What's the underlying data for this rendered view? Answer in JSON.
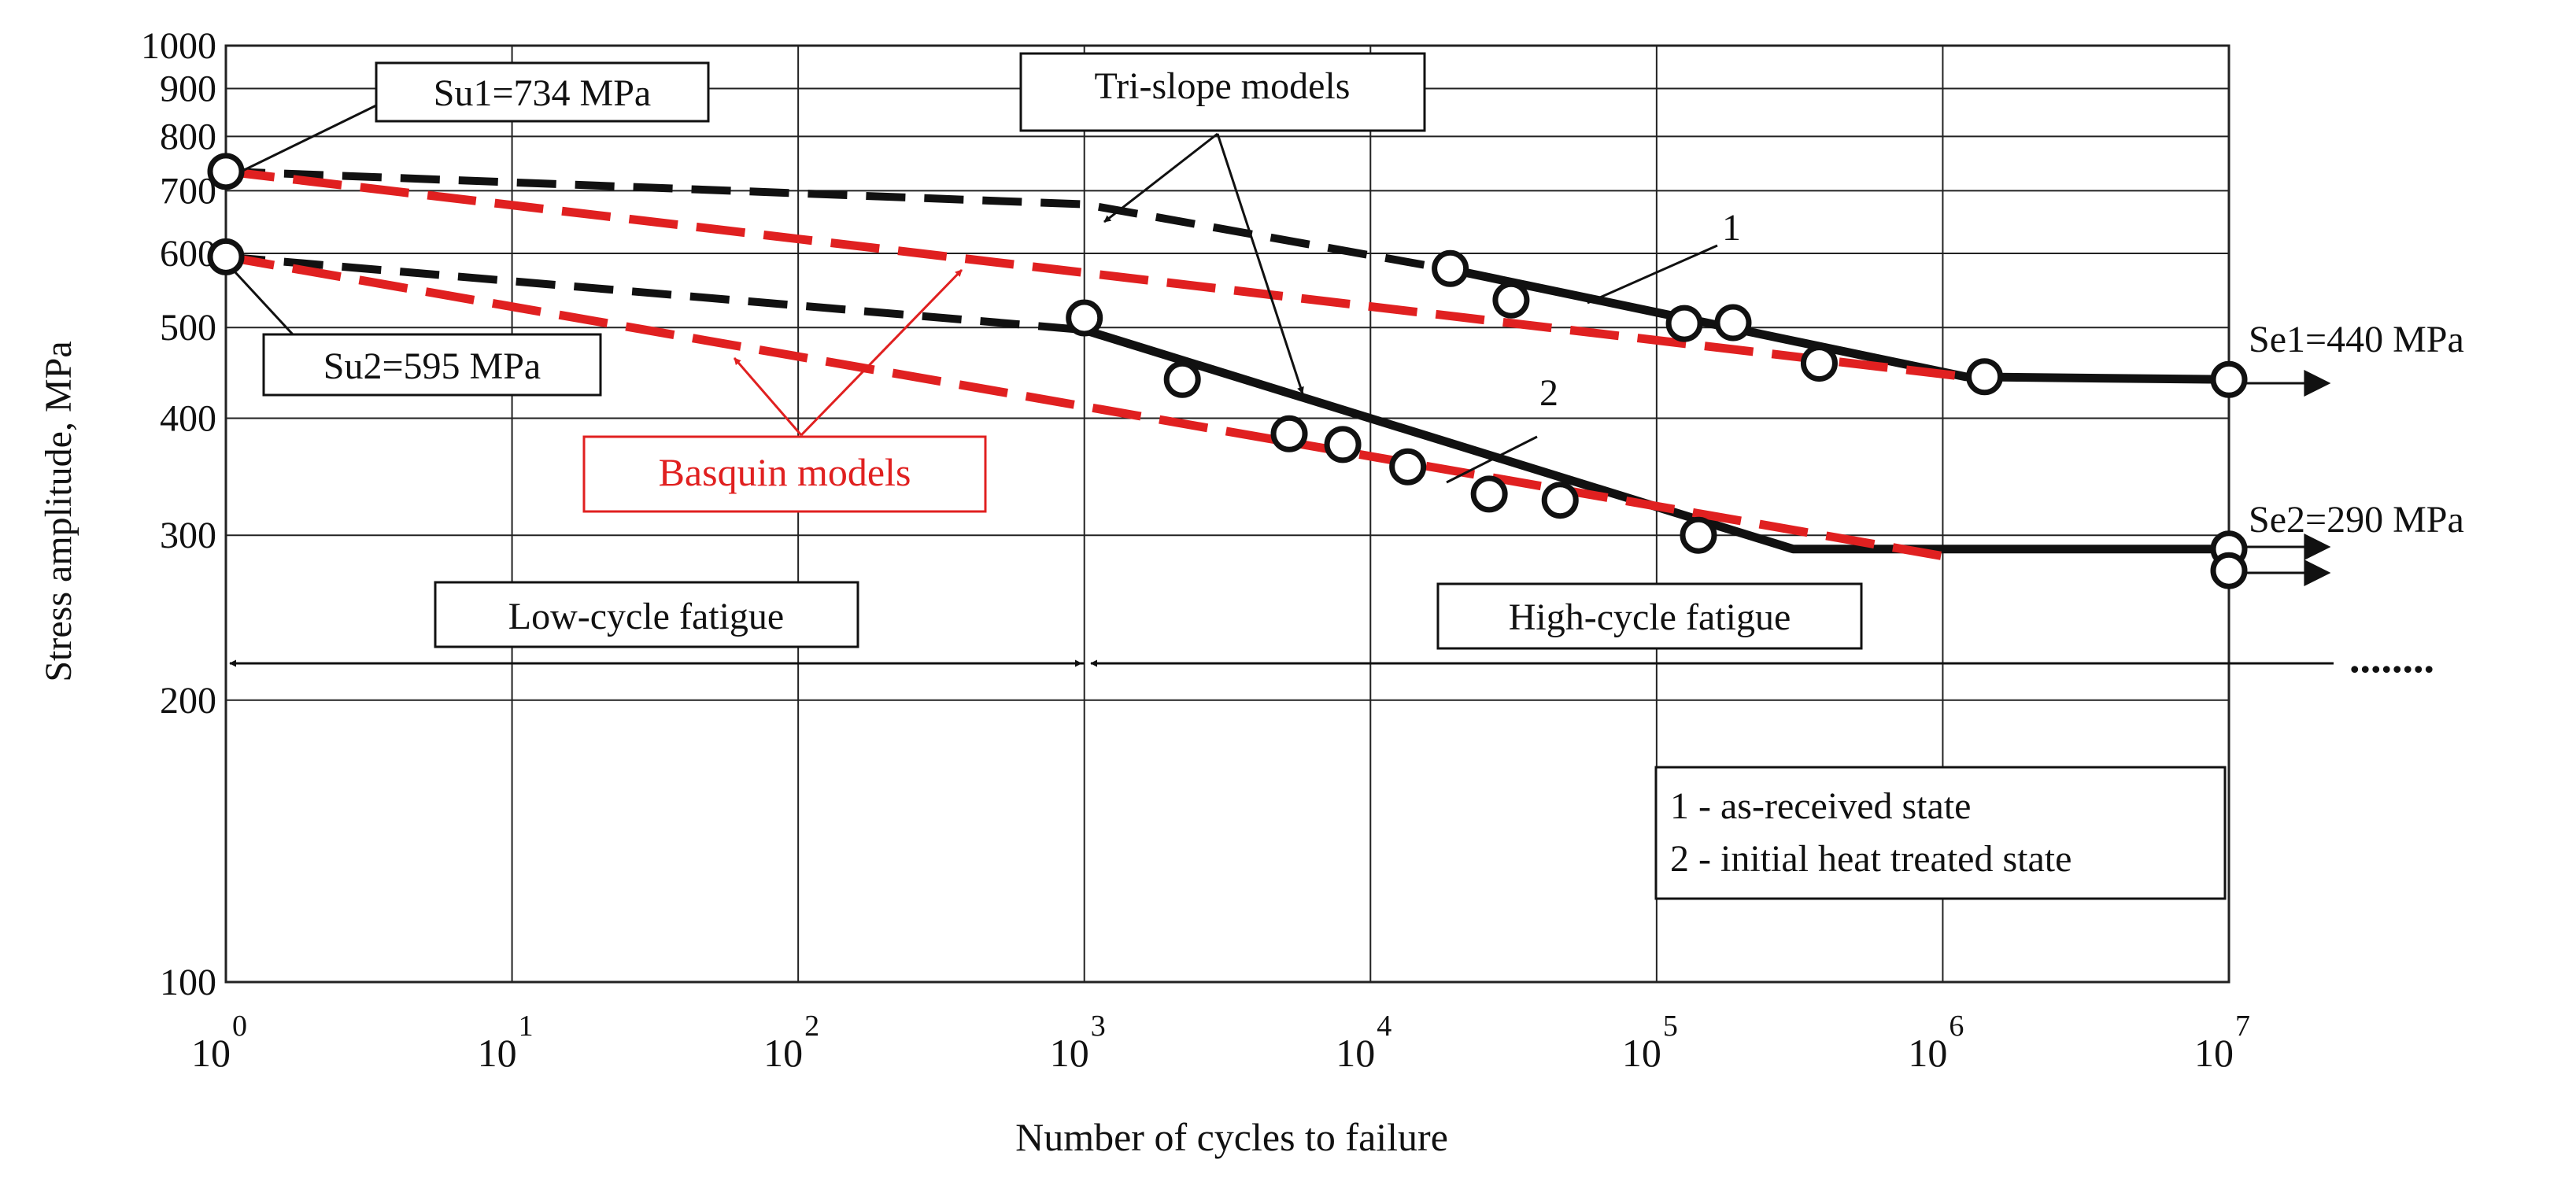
{
  "chart_data": {
    "type": "line",
    "title": "",
    "xlabel": "Number of cycles to failure",
    "ylabel": "Stress amplitude, MPa",
    "x_scale": "log",
    "y_scale": "log",
    "xlim": [
      1,
      10000000
    ],
    "ylim": [
      100,
      1000
    ],
    "grid": true,
    "x_ticks": [
      {
        "base": "10",
        "exp": "0",
        "value": 1
      },
      {
        "base": "10",
        "exp": "1",
        "value": 10
      },
      {
        "base": "10",
        "exp": "2",
        "value": 100
      },
      {
        "base": "10",
        "exp": "3",
        "value": 1000
      },
      {
        "base": "10",
        "exp": "4",
        "value": 10000
      },
      {
        "base": "10",
        "exp": "5",
        "value": 100000
      },
      {
        "base": "10",
        "exp": "6",
        "value": 1000000
      },
      {
        "base": "10",
        "exp": "7",
        "value": 10000000
      }
    ],
    "y_ticks": [
      {
        "label": "100",
        "value": 100
      },
      {
        "label": "200",
        "value": 200
      },
      {
        "label": "300",
        "value": 300
      },
      {
        "label": "400",
        "value": 400
      },
      {
        "label": "500",
        "value": 500
      },
      {
        "label": "600",
        "value": 600
      },
      {
        "label": "700",
        "value": 700
      },
      {
        "label": "800",
        "value": 800
      },
      {
        "label": "900",
        "value": 900
      },
      {
        "label": "1000",
        "value": 1000
      }
    ],
    "series": [
      {
        "name": "1 tri-slope (dashed segment)",
        "color": "#111111",
        "style": "dashed",
        "x": [
          1,
          1000,
          20000
        ],
        "y": [
          734,
          677,
          575
        ]
      },
      {
        "name": "1 tri-slope (solid segment)",
        "color": "#111111",
        "style": "solid",
        "x": [
          20000,
          1200000,
          10000000
        ],
        "y": [
          575,
          443,
          440
        ]
      },
      {
        "name": "2 tri-slope (dashed segment)",
        "color": "#111111",
        "style": "dashed",
        "x": [
          1,
          1000
        ],
        "y": [
          595,
          497
        ]
      },
      {
        "name": "2 tri-slope (solid segment)",
        "color": "#111111",
        "style": "solid",
        "x": [
          1000,
          300000,
          10000000
        ],
        "y": [
          497,
          290,
          290
        ]
      },
      {
        "name": "1 Basquin model",
        "color": "#e02020",
        "style": "dashed",
        "x": [
          1,
          1200000
        ],
        "y": [
          734,
          443
        ]
      },
      {
        "name": "2 Basquin model",
        "color": "#e02020",
        "style": "dashed",
        "x": [
          1,
          1000000
        ],
        "y": [
          595,
          285
        ]
      },
      {
        "name": "1 as-received test points",
        "style": "markers",
        "x": [
          1,
          19000,
          31000,
          125000,
          185000,
          370000,
          1400000,
          10000000
        ],
        "y": [
          734,
          578,
          535,
          505,
          506,
          458,
          443,
          440
        ]
      },
      {
        "name": "2 heat treated test points",
        "style": "markers",
        "x": [
          1,
          1000,
          2200,
          5200,
          8000,
          13500,
          26000,
          46000,
          140000,
          10000000,
          10000000
        ],
        "y": [
          595,
          512,
          440,
          385,
          375,
          355,
          332,
          327,
          300,
          290,
          275
        ]
      }
    ],
    "annotations": {
      "su1": "Su1=734 MPa",
      "su2": "Su2=595 MPa",
      "se1": "Se1=440 MPa",
      "se2": "Se2=290 MPa",
      "trislope": "Tri-slope models",
      "basquin": "Basquin models",
      "curve1": "1",
      "curve2": "2",
      "low_cycle": "Low-cycle fatigue",
      "high_cycle": "High-cycle fatigue",
      "dots": "........"
    },
    "legend": {
      "placement": "bottom-right",
      "items": [
        "1 - as-received state",
        "2 - initial heat treated state"
      ]
    }
  },
  "colors": {
    "basquin": "#e02020",
    "trislope": "#111111",
    "grid": "#222222"
  }
}
